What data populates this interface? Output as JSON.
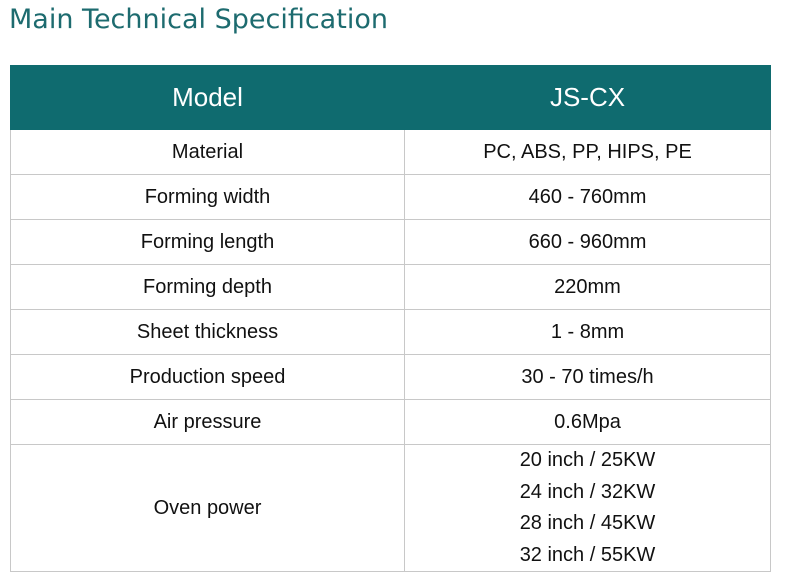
{
  "header": {
    "title": "Main Technical Specification"
  },
  "table": {
    "columns": [
      "Model",
      "JS-CX"
    ],
    "rows": [
      [
        "Material",
        "PC, ABS, PP, HIPS, PE"
      ],
      [
        "Forming width",
        "460 - 760mm"
      ],
      [
        "Forming length",
        "660 - 960mm"
      ],
      [
        "Forming depth",
        "220mm"
      ],
      [
        "Sheet thickness",
        "1 - 8mm"
      ],
      [
        "Production speed",
        "30 - 70 times/h"
      ],
      [
        "Air pressure",
        "0.6Mpa"
      ],
      [
        "Oven power",
        [
          "20 inch / 25KW",
          "24 inch / 32KW",
          "28 inch / 45KW",
          "32 inch / 55KW"
        ]
      ]
    ]
  }
}
